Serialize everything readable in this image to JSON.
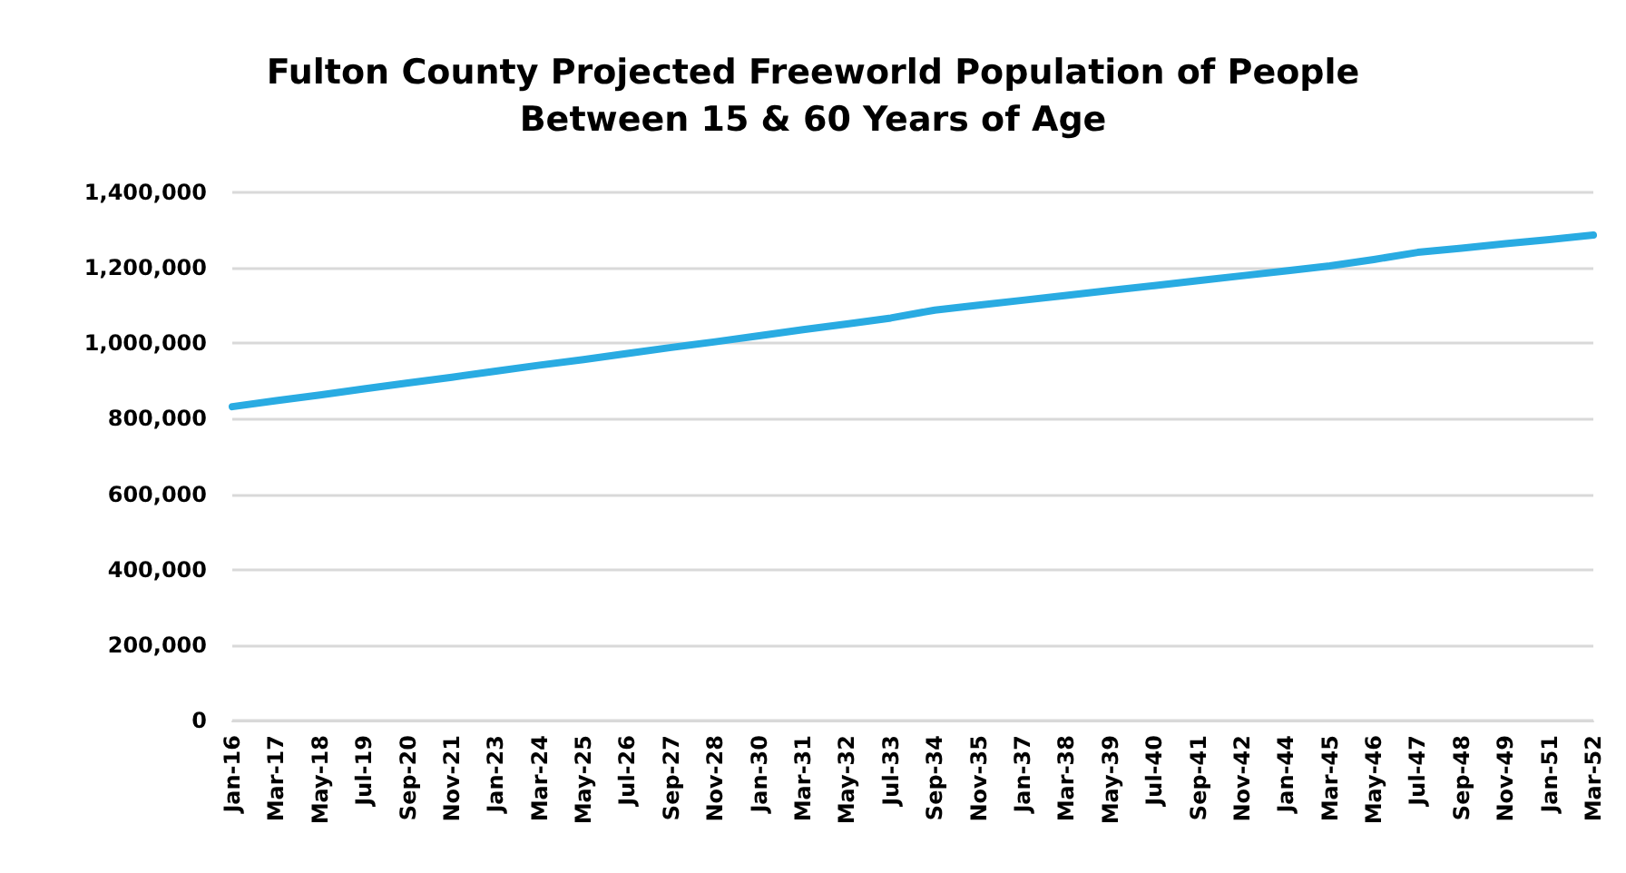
{
  "chart_data": {
    "type": "line",
    "title": "Fulton County Projected Freeworld Population of People\nBetween 15 & 60 Years of Age",
    "categories": [
      "Jan-16",
      "Mar-17",
      "May-18",
      "Jul-19",
      "Sep-20",
      "Nov-21",
      "Jan-23",
      "Mar-24",
      "May-25",
      "Jul-26",
      "Sep-27",
      "Nov-28",
      "Jan-30",
      "Mar-31",
      "May-32",
      "Jul-33",
      "Sep-34",
      "Nov-35",
      "Jan-37",
      "Mar-38",
      "May-39",
      "Jul-40",
      "Sep-41",
      "Nov-42",
      "Jan-44",
      "Mar-45",
      "May-46",
      "Jul-47",
      "Sep-48",
      "Nov-49",
      "Jan-51",
      "Mar-52"
    ],
    "series": [
      {
        "color": "#29abe2",
        "values": [
          832000,
          848000,
          863000,
          879000,
          895000,
          910000,
          926000,
          942000,
          957000,
          973000,
          989000,
          1004000,
          1020000,
          1036000,
          1051000,
          1067000,
          1088000,
          1101000,
          1114000,
          1127000,
          1140000,
          1153000,
          1166000,
          1179000,
          1192000,
          1205000,
          1222000,
          1241000,
          1252000,
          1264000,
          1275000,
          1287000
        ]
      }
    ],
    "ylim": [
      0,
      1400000
    ],
    "yticks": [
      0,
      {
        "value": 200000,
        "label": "200,000"
      },
      {
        "value": 400000,
        "label": "400,000"
      },
      {
        "value": 600000,
        "label": "600,000"
      },
      {
        "value": 800000,
        "label": "800,000"
      },
      {
        "value": 1000000,
        "label": "1,000,000"
      },
      {
        "value": 1200000,
        "label": "1,200,000"
      },
      {
        "value": 1400000,
        "label": "1,400,000"
      }
    ],
    "grid": "y",
    "marker": "none",
    "line_style": "solid"
  }
}
